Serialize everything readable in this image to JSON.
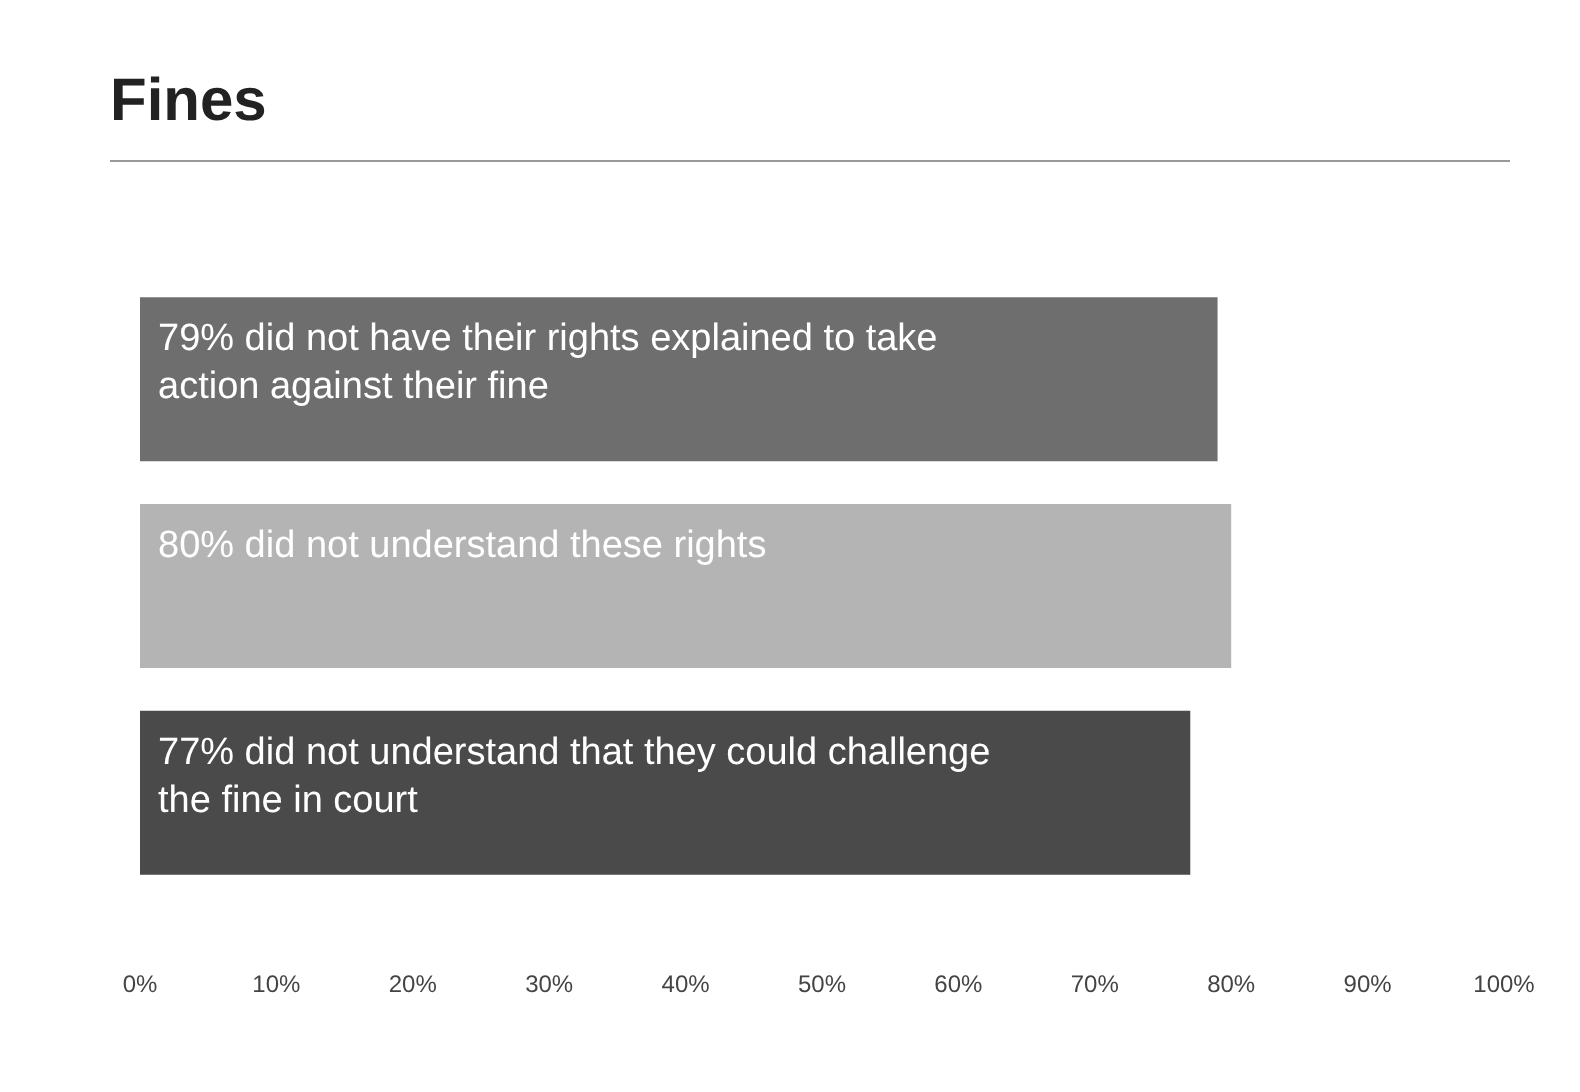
{
  "chart_data": {
    "type": "bar",
    "orientation": "horizontal",
    "title": "Fines",
    "categories": [
      "79% did not have their rights explained to take action against their fine",
      "80% did not understand these rights",
      "77% did not understand that they could challenge the fine in court"
    ],
    "values": [
      79,
      80,
      77
    ],
    "colors": [
      "#6e6e6e",
      "#b4b4b4",
      "#4a4a4a"
    ],
    "xlim": [
      0,
      100
    ],
    "xticks": [
      {
        "value": 0,
        "label": "0%"
      },
      {
        "value": 10,
        "label": "10%"
      },
      {
        "value": 20,
        "label": "20%"
      },
      {
        "value": 30,
        "label": "30%"
      },
      {
        "value": 40,
        "label": "40%"
      },
      {
        "value": 50,
        "label": "50%"
      },
      {
        "value": 60,
        "label": "60%"
      },
      {
        "value": 70,
        "label": "70%"
      },
      {
        "value": 80,
        "label": "80%"
      },
      {
        "value": 90,
        "label": "90%"
      },
      {
        "value": 100,
        "label": "100%"
      }
    ],
    "grid": false
  }
}
